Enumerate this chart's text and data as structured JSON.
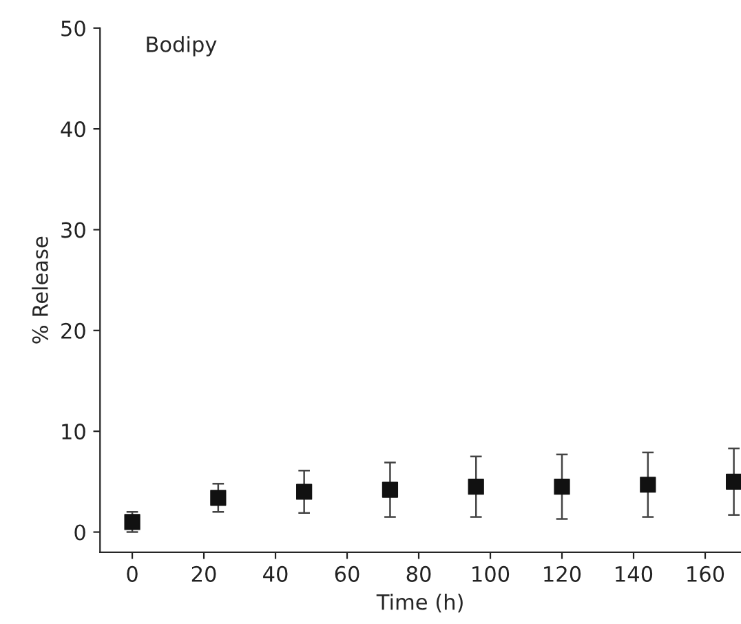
{
  "chart_data": {
    "type": "scatter",
    "title": "Bodipy",
    "xlabel": "Time (h)",
    "ylabel": "% Release",
    "x": [
      0,
      24,
      48,
      72,
      96,
      120,
      144,
      168
    ],
    "values": [
      1.0,
      3.4,
      4.0,
      4.2,
      4.5,
      4.5,
      4.7,
      5.0
    ],
    "errors": [
      1.0,
      1.4,
      2.1,
      2.7,
      3.0,
      3.2,
      3.2,
      3.3
    ],
    "color": "#111111",
    "marker": "square",
    "xlim": [
      -9,
      170
    ],
    "ylim": [
      -2,
      50
    ],
    "xticks": [
      0,
      20,
      40,
      60,
      80,
      100,
      120,
      140,
      160
    ],
    "yticks": [
      0,
      10,
      20,
      30,
      40,
      50
    ],
    "grid": false,
    "legend": false
  }
}
